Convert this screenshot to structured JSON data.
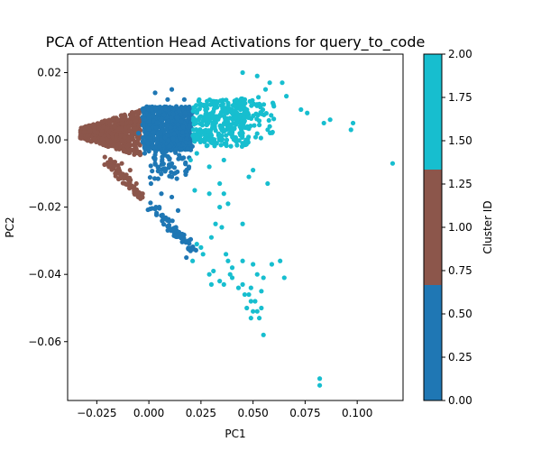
{
  "chart_data": {
    "type": "scatter",
    "title": "PCA of Attention Head Activations for query_to_code",
    "xlabel": "PC1",
    "ylabel": "PC2",
    "xlim": [
      -0.039,
      0.122
    ],
    "ylim": [
      -0.0775,
      0.0255
    ],
    "xticks": [
      -0.025,
      0.0,
      0.025,
      0.05,
      0.075,
      0.1
    ],
    "xtick_labels": [
      "−0.025",
      "0.000",
      "0.025",
      "0.050",
      "0.075",
      "0.100"
    ],
    "yticks": [
      0.02,
      0.0,
      -0.02,
      -0.04,
      -0.06
    ],
    "ytick_labels": [
      "0.02",
      "0.00",
      "−0.02",
      "−0.04",
      "−0.06"
    ],
    "grid": false,
    "colorbar": {
      "label": "Cluster ID",
      "range": [
        0.0,
        2.0
      ],
      "ticks": [
        0.0,
        0.25,
        0.5,
        0.75,
        1.0,
        1.25,
        1.5,
        1.75,
        2.0
      ],
      "tick_labels": [
        "0.00",
        "0.25",
        "0.50",
        "0.75",
        "1.00",
        "1.25",
        "1.50",
        "1.75",
        "2.00"
      ],
      "bands": [
        {
          "from": 0.0,
          "to": 0.6667,
          "color": "#1f77b4"
        },
        {
          "from": 0.6667,
          "to": 1.3333,
          "color": "#8c564b"
        },
        {
          "from": 1.3333,
          "to": 2.0,
          "color": "#17becf"
        }
      ]
    },
    "cluster_colors": [
      "#1f77b4",
      "#8c564b",
      "#17becf"
    ],
    "point_groups": [
      {
        "cluster": 1,
        "n": 550,
        "x": [
          -0.033,
          -0.004
        ],
        "y": [
          -0.003,
          0.009
        ]
      },
      {
        "cluster": 1,
        "n": 90,
        "x": [
          -0.02,
          -0.003
        ],
        "y": [
          -0.018,
          -0.004
        ]
      },
      {
        "cluster": 0,
        "n": 700,
        "x": [
          -0.003,
          0.021
        ],
        "y": [
          -0.003,
          0.01
        ]
      },
      {
        "cluster": 0,
        "n": 60,
        "x": [
          0.0,
          0.02
        ],
        "y": [
          -0.012,
          -0.003
        ]
      },
      {
        "cluster": 0,
        "n": 60,
        "x": [
          0.0,
          0.022
        ],
        "y": [
          -0.034,
          -0.014
        ]
      },
      {
        "cluster": 2,
        "n": 320,
        "x": [
          0.021,
          0.048
        ],
        "y": [
          -0.002,
          0.012
        ]
      },
      {
        "cluster": 2,
        "n": 60,
        "x": [
          0.04,
          0.06
        ],
        "y": [
          0.0,
          0.013
        ]
      }
    ],
    "points": [
      {
        "x": -0.005,
        "y": 0.002,
        "c": 0
      },
      {
        "x": -0.002,
        "y": -0.004,
        "c": 0
      },
      {
        "x": 0.003,
        "y": -0.007,
        "c": 0
      },
      {
        "x": 0.008,
        "y": -0.009,
        "c": 0
      },
      {
        "x": 0.001,
        "y": -0.013,
        "c": 0
      },
      {
        "x": 0.006,
        "y": -0.016,
        "c": 0
      },
      {
        "x": 0.011,
        "y": -0.017,
        "c": 0
      },
      {
        "x": 0.014,
        "y": -0.021,
        "c": 0
      },
      {
        "x": 0.005,
        "y": -0.02,
        "c": 0
      },
      {
        "x": 0.009,
        "y": -0.024,
        "c": 0
      },
      {
        "x": 0.013,
        "y": -0.026,
        "c": 0
      },
      {
        "x": 0.016,
        "y": -0.028,
        "c": 0
      },
      {
        "x": 0.019,
        "y": -0.03,
        "c": 0
      },
      {
        "x": 0.02,
        "y": -0.033,
        "c": 0
      },
      {
        "x": 0.018,
        "y": -0.035,
        "c": 0
      },
      {
        "x": 0.011,
        "y": -0.011,
        "c": 0
      },
      {
        "x": 0.003,
        "y": 0.014,
        "c": 0
      },
      {
        "x": 0.011,
        "y": 0.015,
        "c": 0
      },
      {
        "x": 0.009,
        "y": 0.012,
        "c": 0
      },
      {
        "x": 0.017,
        "y": 0.012,
        "c": 0
      },
      {
        "x": -0.013,
        "y": -0.007,
        "c": 1
      },
      {
        "x": -0.009,
        "y": -0.009,
        "c": 1
      },
      {
        "x": -0.006,
        "y": -0.013,
        "c": 1
      },
      {
        "x": -0.003,
        "y": -0.016,
        "c": 1
      },
      {
        "x": 0.045,
        "y": 0.02,
        "c": 2
      },
      {
        "x": 0.052,
        "y": 0.019,
        "c": 2
      },
      {
        "x": 0.058,
        "y": 0.017,
        "c": 2
      },
      {
        "x": 0.064,
        "y": 0.017,
        "c": 2
      },
      {
        "x": 0.056,
        "y": 0.015,
        "c": 2
      },
      {
        "x": 0.066,
        "y": 0.013,
        "c": 2
      },
      {
        "x": 0.073,
        "y": 0.009,
        "c": 2
      },
      {
        "x": 0.076,
        "y": 0.008,
        "c": 2
      },
      {
        "x": 0.087,
        "y": 0.006,
        "c": 2
      },
      {
        "x": 0.084,
        "y": 0.005,
        "c": 2
      },
      {
        "x": 0.098,
        "y": 0.005,
        "c": 2
      },
      {
        "x": 0.097,
        "y": 0.003,
        "c": 2
      },
      {
        "x": 0.117,
        "y": -0.007,
        "c": 2
      },
      {
        "x": 0.058,
        "y": 0.004,
        "c": 2
      },
      {
        "x": 0.06,
        "y": 0.01,
        "c": 2
      },
      {
        "x": 0.023,
        "y": -0.004,
        "c": 2
      },
      {
        "x": 0.02,
        "y": -0.006,
        "c": 2
      },
      {
        "x": 0.029,
        "y": -0.008,
        "c": 2
      },
      {
        "x": 0.036,
        "y": -0.006,
        "c": 2
      },
      {
        "x": 0.048,
        "y": -0.011,
        "c": 2
      },
      {
        "x": 0.057,
        "y": -0.013,
        "c": 2
      },
      {
        "x": 0.05,
        "y": -0.009,
        "c": 2
      },
      {
        "x": 0.034,
        "y": -0.013,
        "c": 2
      },
      {
        "x": 0.036,
        "y": -0.016,
        "c": 2
      },
      {
        "x": 0.034,
        "y": -0.02,
        "c": 2
      },
      {
        "x": 0.038,
        "y": -0.019,
        "c": 2
      },
      {
        "x": 0.022,
        "y": -0.015,
        "c": 2
      },
      {
        "x": 0.029,
        "y": -0.016,
        "c": 2
      },
      {
        "x": 0.032,
        "y": -0.025,
        "c": 2
      },
      {
        "x": 0.03,
        "y": -0.029,
        "c": 2
      },
      {
        "x": 0.035,
        "y": -0.026,
        "c": 2
      },
      {
        "x": 0.045,
        "y": -0.025,
        "c": 2
      },
      {
        "x": 0.023,
        "y": -0.031,
        "c": 2
      },
      {
        "x": 0.025,
        "y": -0.032,
        "c": 2
      },
      {
        "x": 0.026,
        "y": -0.034,
        "c": 2
      },
      {
        "x": 0.021,
        "y": -0.036,
        "c": 2
      },
      {
        "x": 0.037,
        "y": -0.034,
        "c": 2
      },
      {
        "x": 0.038,
        "y": -0.036,
        "c": 2
      },
      {
        "x": 0.045,
        "y": -0.036,
        "c": 2
      },
      {
        "x": 0.04,
        "y": -0.038,
        "c": 2
      },
      {
        "x": 0.031,
        "y": -0.039,
        "c": 2
      },
      {
        "x": 0.029,
        "y": -0.04,
        "c": 2
      },
      {
        "x": 0.034,
        "y": -0.042,
        "c": 2
      },
      {
        "x": 0.03,
        "y": -0.043,
        "c": 2
      },
      {
        "x": 0.039,
        "y": -0.04,
        "c": 2
      },
      {
        "x": 0.04,
        "y": -0.041,
        "c": 2
      },
      {
        "x": 0.036,
        "y": -0.043,
        "c": 2
      },
      {
        "x": 0.043,
        "y": -0.044,
        "c": 2
      },
      {
        "x": 0.045,
        "y": -0.043,
        "c": 2
      },
      {
        "x": 0.049,
        "y": -0.044,
        "c": 2
      },
      {
        "x": 0.046,
        "y": -0.046,
        "c": 2
      },
      {
        "x": 0.048,
        "y": -0.046,
        "c": 2
      },
      {
        "x": 0.049,
        "y": -0.048,
        "c": 2
      },
      {
        "x": 0.051,
        "y": -0.048,
        "c": 2
      },
      {
        "x": 0.047,
        "y": -0.05,
        "c": 2
      },
      {
        "x": 0.05,
        "y": -0.051,
        "c": 2
      },
      {
        "x": 0.052,
        "y": -0.051,
        "c": 2
      },
      {
        "x": 0.049,
        "y": -0.053,
        "c": 2
      },
      {
        "x": 0.053,
        "y": -0.053,
        "c": 2
      },
      {
        "x": 0.054,
        "y": -0.05,
        "c": 2
      },
      {
        "x": 0.054,
        "y": -0.045,
        "c": 2
      },
      {
        "x": 0.055,
        "y": -0.041,
        "c": 2
      },
      {
        "x": 0.052,
        "y": -0.04,
        "c": 2
      },
      {
        "x": 0.05,
        "y": -0.037,
        "c": 2
      },
      {
        "x": 0.059,
        "y": -0.037,
        "c": 2
      },
      {
        "x": 0.065,
        "y": -0.041,
        "c": 2
      },
      {
        "x": 0.063,
        "y": -0.036,
        "c": 2
      },
      {
        "x": 0.055,
        "y": -0.058,
        "c": 2
      },
      {
        "x": 0.082,
        "y": -0.071,
        "c": 2
      },
      {
        "x": 0.082,
        "y": -0.073,
        "c": 2
      }
    ]
  }
}
